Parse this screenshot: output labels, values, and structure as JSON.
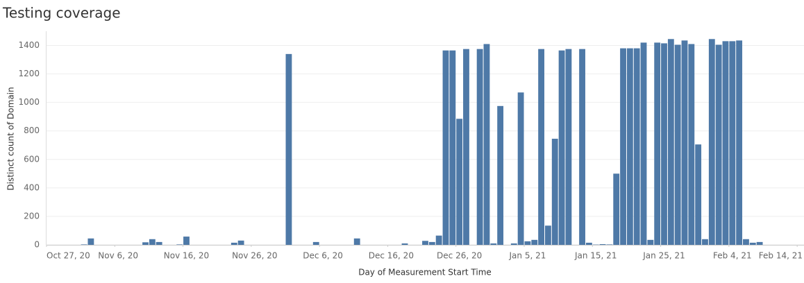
{
  "chart_data": {
    "type": "bar",
    "title": "Testing coverage",
    "x_label": "Day of Measurement Start Time",
    "y_label": "Distinct count of Domain",
    "color": "#4e79a7",
    "grid": true,
    "xlim": [
      "2020-10-27",
      "2021-02-15"
    ],
    "ylim": [
      0,
      1500
    ],
    "yticks": [
      0,
      200,
      400,
      600,
      800,
      1000,
      1200,
      1400
    ],
    "xticks": [
      {
        "value": "2020-10-27",
        "label": "Oct 27, 20"
      },
      {
        "value": "2020-11-06",
        "label": "Nov 6, 20"
      },
      {
        "value": "2020-11-16",
        "label": "Nov 16, 20"
      },
      {
        "value": "2020-11-26",
        "label": "Nov 26, 20"
      },
      {
        "value": "2020-12-06",
        "label": "Dec 6, 20"
      },
      {
        "value": "2020-12-16",
        "label": "Dec 16, 20"
      },
      {
        "value": "2020-12-26",
        "label": "Dec 26, 20"
      },
      {
        "value": "2021-01-05",
        "label": "Jan 5, 21"
      },
      {
        "value": "2021-01-15",
        "label": "Jan 15, 21"
      },
      {
        "value": "2021-01-25",
        "label": "Jan 25, 21"
      },
      {
        "value": "2021-02-04",
        "label": "Feb 4, 21"
      },
      {
        "value": "2021-02-14",
        "label": "Feb 14, 21"
      }
    ],
    "x": [
      "2020-11-01",
      "2020-11-02",
      "2020-11-10",
      "2020-11-11",
      "2020-11-12",
      "2020-11-15",
      "2020-11-16",
      "2020-11-23",
      "2020-11-24",
      "2020-12-01",
      "2020-12-05",
      "2020-12-11",
      "2020-12-18",
      "2020-12-21",
      "2020-12-22",
      "2020-12-23",
      "2020-12-24",
      "2020-12-25",
      "2020-12-26",
      "2020-12-27",
      "2020-12-29",
      "2020-12-30",
      "2020-12-31",
      "2021-01-01",
      "2021-01-03",
      "2021-01-04",
      "2021-01-05",
      "2021-01-06",
      "2021-01-07",
      "2021-01-08",
      "2021-01-09",
      "2021-01-10",
      "2021-01-11",
      "2021-01-13",
      "2021-01-14",
      "2021-01-15",
      "2021-01-16",
      "2021-01-17",
      "2021-01-18",
      "2021-01-19",
      "2021-01-20",
      "2021-01-21",
      "2021-01-22",
      "2021-01-23",
      "2021-01-24",
      "2021-01-25",
      "2021-01-26",
      "2021-01-27",
      "2021-01-28",
      "2021-01-29",
      "2021-01-30",
      "2021-01-31",
      "2021-02-01",
      "2021-02-02",
      "2021-02-03",
      "2021-02-04",
      "2021-02-05",
      "2021-02-06",
      "2021-02-07",
      "2021-02-08"
    ],
    "values": [
      3,
      45,
      18,
      40,
      20,
      3,
      58,
      15,
      30,
      1340,
      20,
      45,
      10,
      28,
      20,
      65,
      1365,
      1365,
      885,
      1375,
      1375,
      1410,
      10,
      975,
      10,
      1070,
      25,
      35,
      1375,
      135,
      745,
      1365,
      1375,
      1375,
      15,
      2,
      5,
      3,
      500,
      1380,
      1380,
      1380,
      1420,
      35,
      1420,
      1415,
      1445,
      1405,
      1435,
      1410,
      705,
      40,
      1445,
      1405,
      1430,
      1430,
      1435,
      40,
      15,
      20
    ]
  }
}
